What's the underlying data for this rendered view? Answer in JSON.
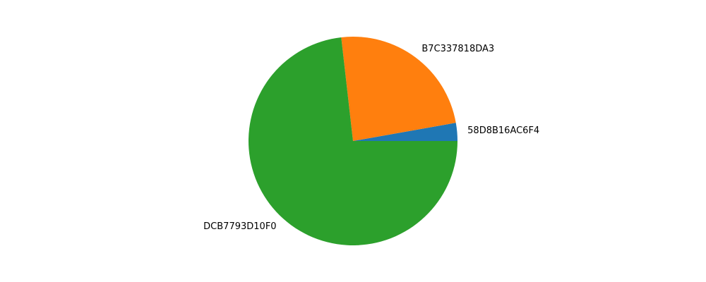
{
  "chart_data": {
    "type": "pie",
    "title": "",
    "start_angle": 0,
    "direction": "counterclockwise",
    "slices": [
      {
        "label": "58D8B16AC6F4",
        "value": 2.8,
        "color": "#1f77b4"
      },
      {
        "label": "B7C337818DA3",
        "value": 24.0,
        "color": "#ff7f0e"
      },
      {
        "label": "DCB7793D10F0",
        "value": 73.2,
        "color": "#2ca02c"
      }
    ]
  }
}
